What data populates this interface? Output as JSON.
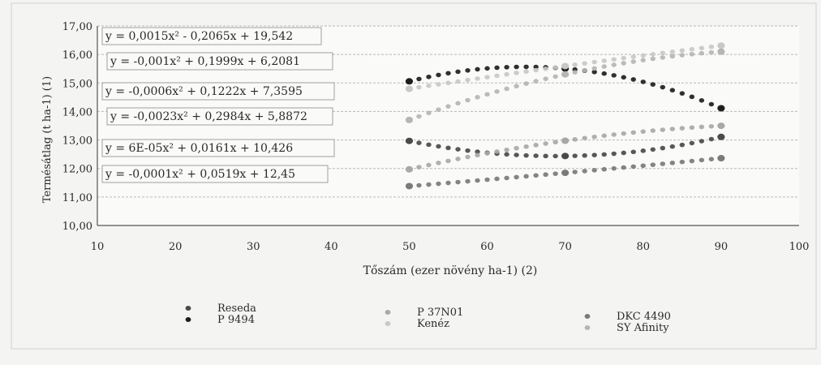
{
  "chart_data": {
    "type": "scatter",
    "title": "",
    "xlabel": "Tőszám (ezer növény ha-1) (2)",
    "ylabel": "Termésátlag (t ha-1) (1)",
    "xlim": [
      10,
      100
    ],
    "ylim": [
      10,
      17
    ],
    "x_ticks": [
      "10",
      "20",
      "30",
      "40",
      "50",
      "60",
      "70",
      "80",
      "90",
      "100"
    ],
    "y_ticks": [
      "10,00",
      "11,00",
      "12,00",
      "13,00",
      "14,00",
      "15,00",
      "16,00",
      "17,00"
    ],
    "grid": true,
    "legend_position": "bottom",
    "equations": [
      "y = 0,0015x² - 0,2065x + 19,542",
      "y = -0,001x² + 0,1999x + 6,2081",
      "y = -0,0006x² + 0,1222x + 7,3595",
      "y = -0,0023x² + 0,2984x + 5,8872",
      "y = 6E-05x² + 0,0161x + 10,426",
      "y = -0,0001x² + 0,0519x + 12,45"
    ],
    "x_range": [
      50,
      90
    ],
    "series": [
      {
        "name": "Reseda",
        "coefficients": [
          0.0015,
          -0.2065,
          19.542
        ],
        "color": "#4a4a4a"
      },
      {
        "name": "P 9494",
        "coefficients": [
          -0.0023,
          0.2984,
          5.8872
        ],
        "color": "#1e1e1e"
      },
      {
        "name": "P 37N01",
        "coefficients": [
          -0.0006,
          0.1222,
          7.3595
        ],
        "color": "#a8a8a8"
      },
      {
        "name": "Kenéz",
        "coefficients": [
          -0.0001,
          0.0519,
          12.45
        ],
        "color": "#c8c8c8"
      },
      {
        "name": "DKC 4490",
        "coefficients": [
          6e-05,
          0.0161,
          10.426
        ],
        "color": "#7a7a7a"
      },
      {
        "name": "SY Afinity",
        "coefficients": [
          -0.001,
          0.1999,
          6.2081
        ],
        "color": "#b5b5b5"
      }
    ]
  }
}
